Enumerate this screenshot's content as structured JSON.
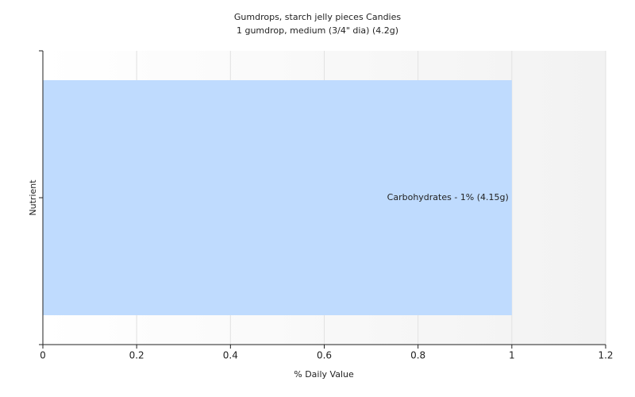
{
  "chart_data": {
    "type": "hbar",
    "title": "Gumdrops, starch jelly pieces Candies",
    "subtitle": "1 gumdrop, medium (3/4\" dia) (4.2g)",
    "x_label": "% Daily Value",
    "y_label": "Nutrient",
    "categories": [
      null
    ],
    "values": [
      1
    ],
    "value_labels": [
      "Carbohydrates - 1% (4.15g)"
    ],
    "color": "#bfdbfe",
    "xlim": [
      0,
      1.2
    ],
    "xticks": [
      0,
      0.2,
      0.4,
      0.6,
      0.8,
      1,
      1.2
    ],
    "grid": true
  }
}
